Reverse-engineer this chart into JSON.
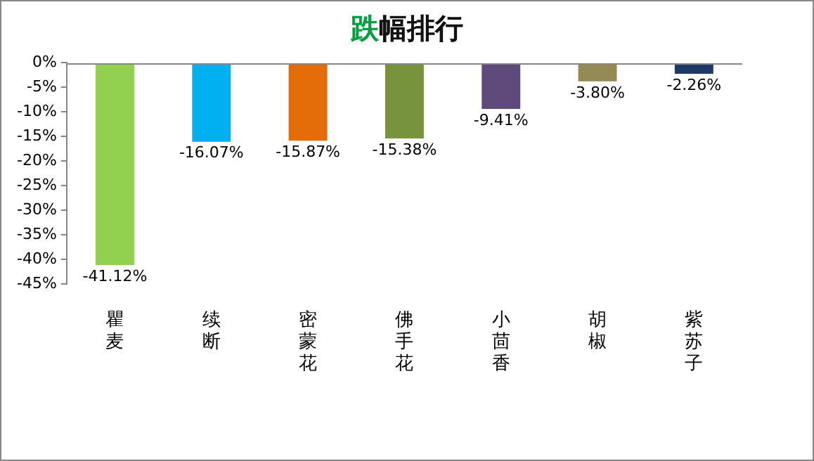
{
  "chart_data": {
    "type": "bar",
    "title": "跌幅排行",
    "categories": [
      "瞿麦",
      "续断",
      "密蒙花",
      "佛手花",
      "小茴香",
      "胡椒",
      "紫苏子"
    ],
    "values": [
      -41.12,
      -16.07,
      -15.87,
      -15.38,
      -9.41,
      -3.8,
      -2.26
    ],
    "colors": [
      "#92d050",
      "#00b0f0",
      "#e36c09",
      "#77933c",
      "#604a7b",
      "#948a54",
      "#1f3864"
    ],
    "value_labels": [
      "-41.12%",
      "-16.07%",
      "-15.87%",
      "-15.38%",
      "-9.41%",
      "-3.80%",
      "-2.26%"
    ],
    "ylim": [
      -45,
      0
    ],
    "yticks": [
      {
        "value": 0,
        "label": "0%"
      },
      {
        "value": -5,
        "label": "-5%"
      },
      {
        "value": -10,
        "label": "-10%"
      },
      {
        "value": -15,
        "label": "-15%"
      },
      {
        "value": -20,
        "label": "-20%"
      },
      {
        "value": -25,
        "label": "-25%"
      },
      {
        "value": -30,
        "label": "-30%"
      },
      {
        "value": -35,
        "label": "-35%"
      },
      {
        "value": -40,
        "label": "-40%"
      },
      {
        "value": -45,
        "label": "-45%"
      }
    ],
    "grid": false,
    "legend": false
  }
}
